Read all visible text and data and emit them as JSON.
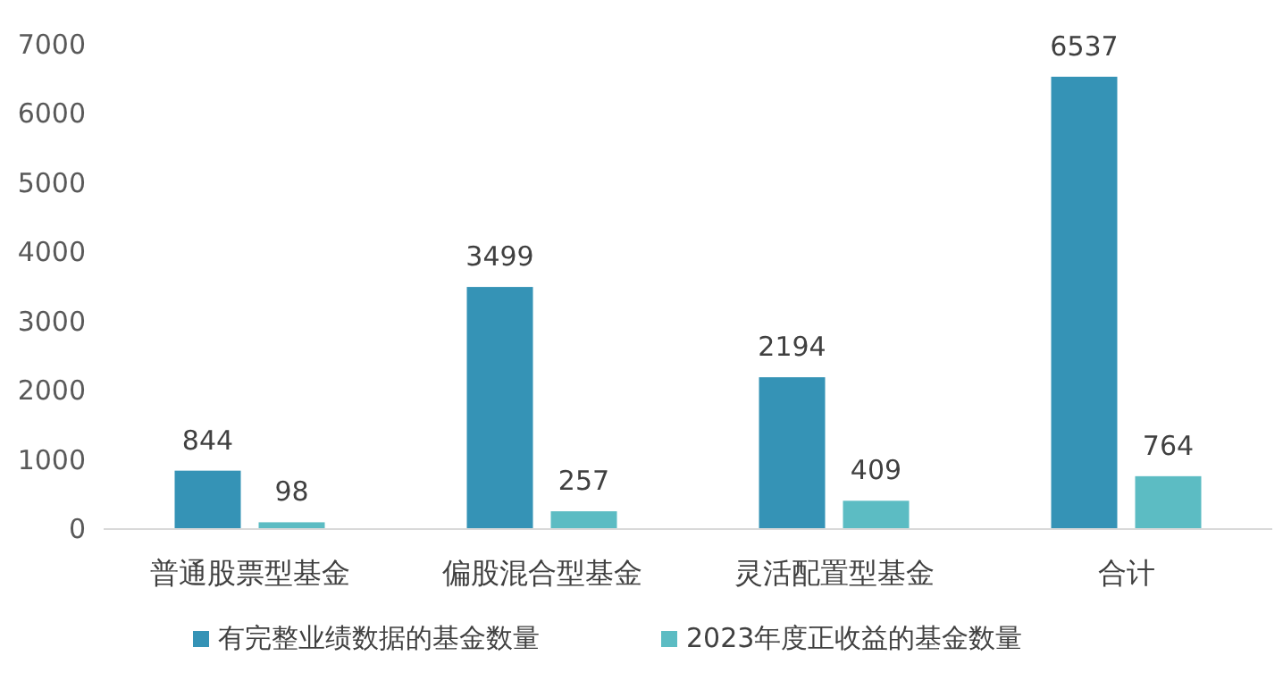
{
  "chart_data": {
    "type": "bar",
    "categories": [
      "普通股票型基金",
      "偏股混合型基金",
      "灵活配置型基金",
      "合计"
    ],
    "series": [
      {
        "name": "有完整业绩数据的基金数量",
        "color": "#3593b6",
        "values": [
          844,
          3499,
          2194,
          6537
        ]
      },
      {
        "name": "2023年度正收益的基金数量",
        "color": "#5cbcc3",
        "values": [
          98,
          257,
          409,
          764
        ]
      }
    ],
    "ylim": [
      0,
      7000
    ],
    "yticks": [
      0,
      1000,
      2000,
      3000,
      4000,
      5000,
      6000,
      7000
    ],
    "grid": false,
    "legend": "bottom",
    "data_labels": true
  }
}
